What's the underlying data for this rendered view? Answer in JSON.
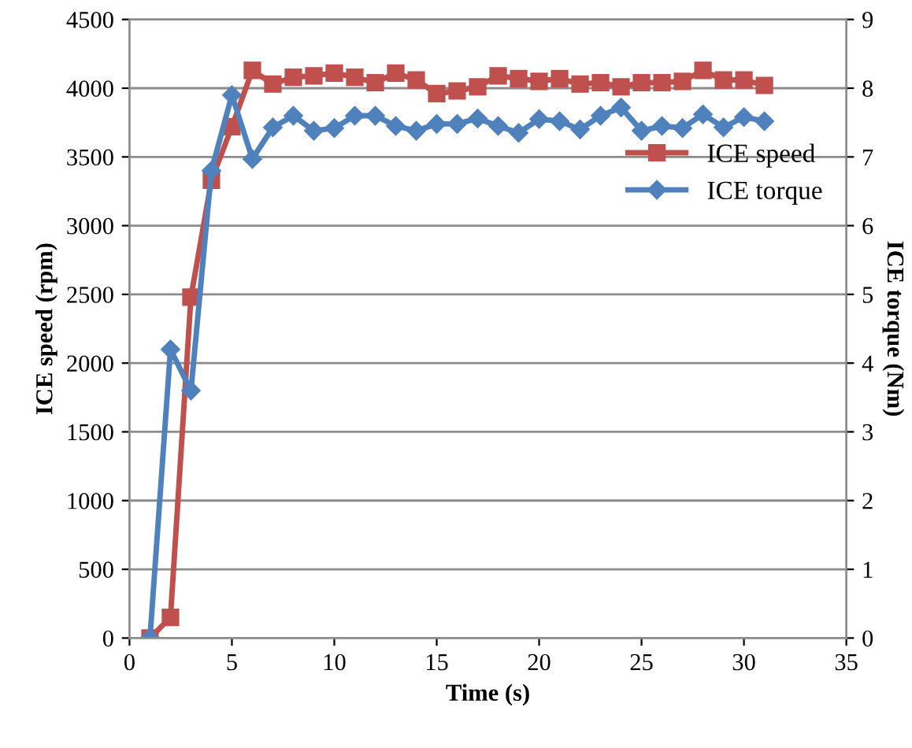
{
  "chart_data": {
    "type": "line",
    "xlabel": "Time (s)",
    "ylabel": "ICE speed (rpm)",
    "y2label": "ICE torque (Nm)",
    "x": [
      1,
      2,
      3,
      4,
      5,
      6,
      7,
      8,
      9,
      10,
      11,
      12,
      13,
      14,
      15,
      16,
      17,
      18,
      19,
      20,
      21,
      22,
      23,
      24,
      25,
      26,
      27,
      28,
      29,
      30,
      31
    ],
    "series": [
      {
        "name": "ICE speed",
        "color": "#c0504d",
        "marker": "square",
        "values": [
          0,
          150,
          2480,
          3330,
          3720,
          4130,
          4030,
          4080,
          4090,
          4110,
          4080,
          4040,
          4110,
          4060,
          3960,
          3980,
          4010,
          4090,
          4070,
          4050,
          4070,
          4030,
          4040,
          4010,
          4040,
          4040,
          4050,
          4130,
          4060,
          4060,
          4020
        ]
      },
      {
        "name": "ICE torque",
        "color": "#4f81bd",
        "marker": "diamond",
        "axis": "y2",
        "values": [
          0,
          4.2,
          3.6,
          6.8,
          7.9,
          6.97,
          7.43,
          7.6,
          7.38,
          7.42,
          7.6,
          7.6,
          7.45,
          7.38,
          7.48,
          7.48,
          7.56,
          7.45,
          7.35,
          7.55,
          7.52,
          7.4,
          7.6,
          7.72,
          7.38,
          7.45,
          7.42,
          7.62,
          7.43,
          7.58,
          7.52
        ]
      }
    ],
    "xlim": [
      0,
      35
    ],
    "xticks": [
      0,
      5,
      10,
      15,
      20,
      25,
      30,
      35
    ],
    "ylim": [
      0,
      4500
    ],
    "yticks": [
      0,
      500,
      1000,
      1500,
      2000,
      2500,
      3000,
      3500,
      4000,
      4500
    ],
    "y2lim": [
      0,
      9
    ],
    "y2ticks": [
      0,
      1,
      2,
      3,
      4,
      5,
      6,
      7,
      8,
      9
    ],
    "grid": "y",
    "legend": "right"
  }
}
